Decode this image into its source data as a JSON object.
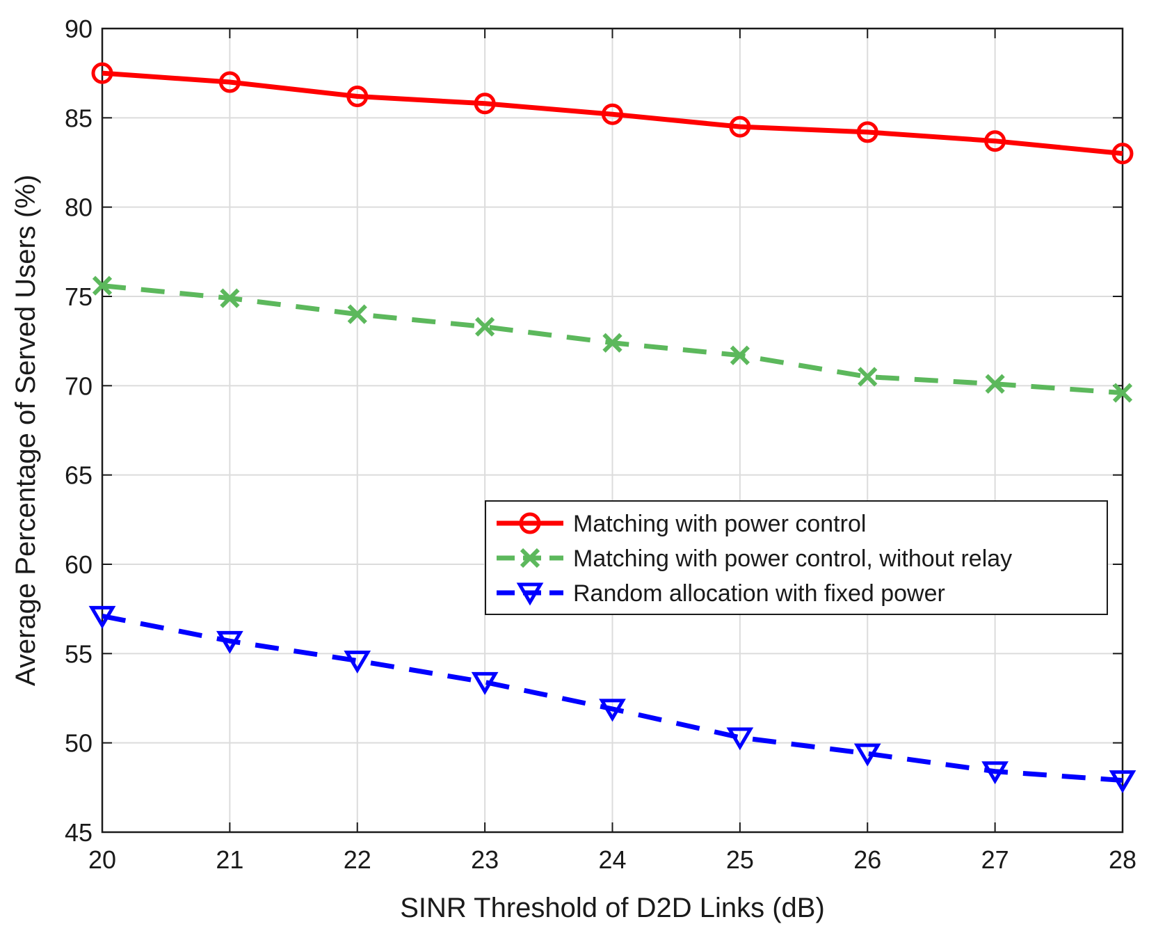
{
  "chart_data": {
    "type": "line",
    "title": "",
    "xlabel": "SINR Threshold of D2D Links (dB)",
    "ylabel": "Average Percentage of Served Users (%)",
    "x": [
      20,
      21,
      22,
      23,
      24,
      25,
      26,
      27,
      28
    ],
    "xlim": [
      20,
      28
    ],
    "ylim": [
      45,
      90
    ],
    "xticks": [
      "20",
      "21",
      "22",
      "23",
      "24",
      "25",
      "26",
      "27",
      "28"
    ],
    "yticks": [
      "45",
      "50",
      "55",
      "60",
      "65",
      "70",
      "75",
      "80",
      "85",
      "90"
    ],
    "grid": true,
    "legend_position": "center-right",
    "series": [
      {
        "name": "Matching with power control",
        "values": [
          87.5,
          87.0,
          86.2,
          85.8,
          85.2,
          84.5,
          84.2,
          83.7,
          83.0
        ],
        "color": "#ff0000",
        "line": "solid",
        "marker": "circle"
      },
      {
        "name": "Matching with power control, without relay",
        "values": [
          75.6,
          74.9,
          74.0,
          73.3,
          72.4,
          71.7,
          70.5,
          70.1,
          69.6
        ],
        "color": "#5cb85c",
        "line": "dashed",
        "marker": "x"
      },
      {
        "name": "Random allocation with fixed power",
        "values": [
          57.1,
          55.7,
          54.6,
          53.4,
          51.9,
          50.3,
          49.4,
          48.4,
          47.9
        ],
        "color": "#0000ff",
        "line": "dashed",
        "marker": "triangle-down"
      }
    ]
  }
}
